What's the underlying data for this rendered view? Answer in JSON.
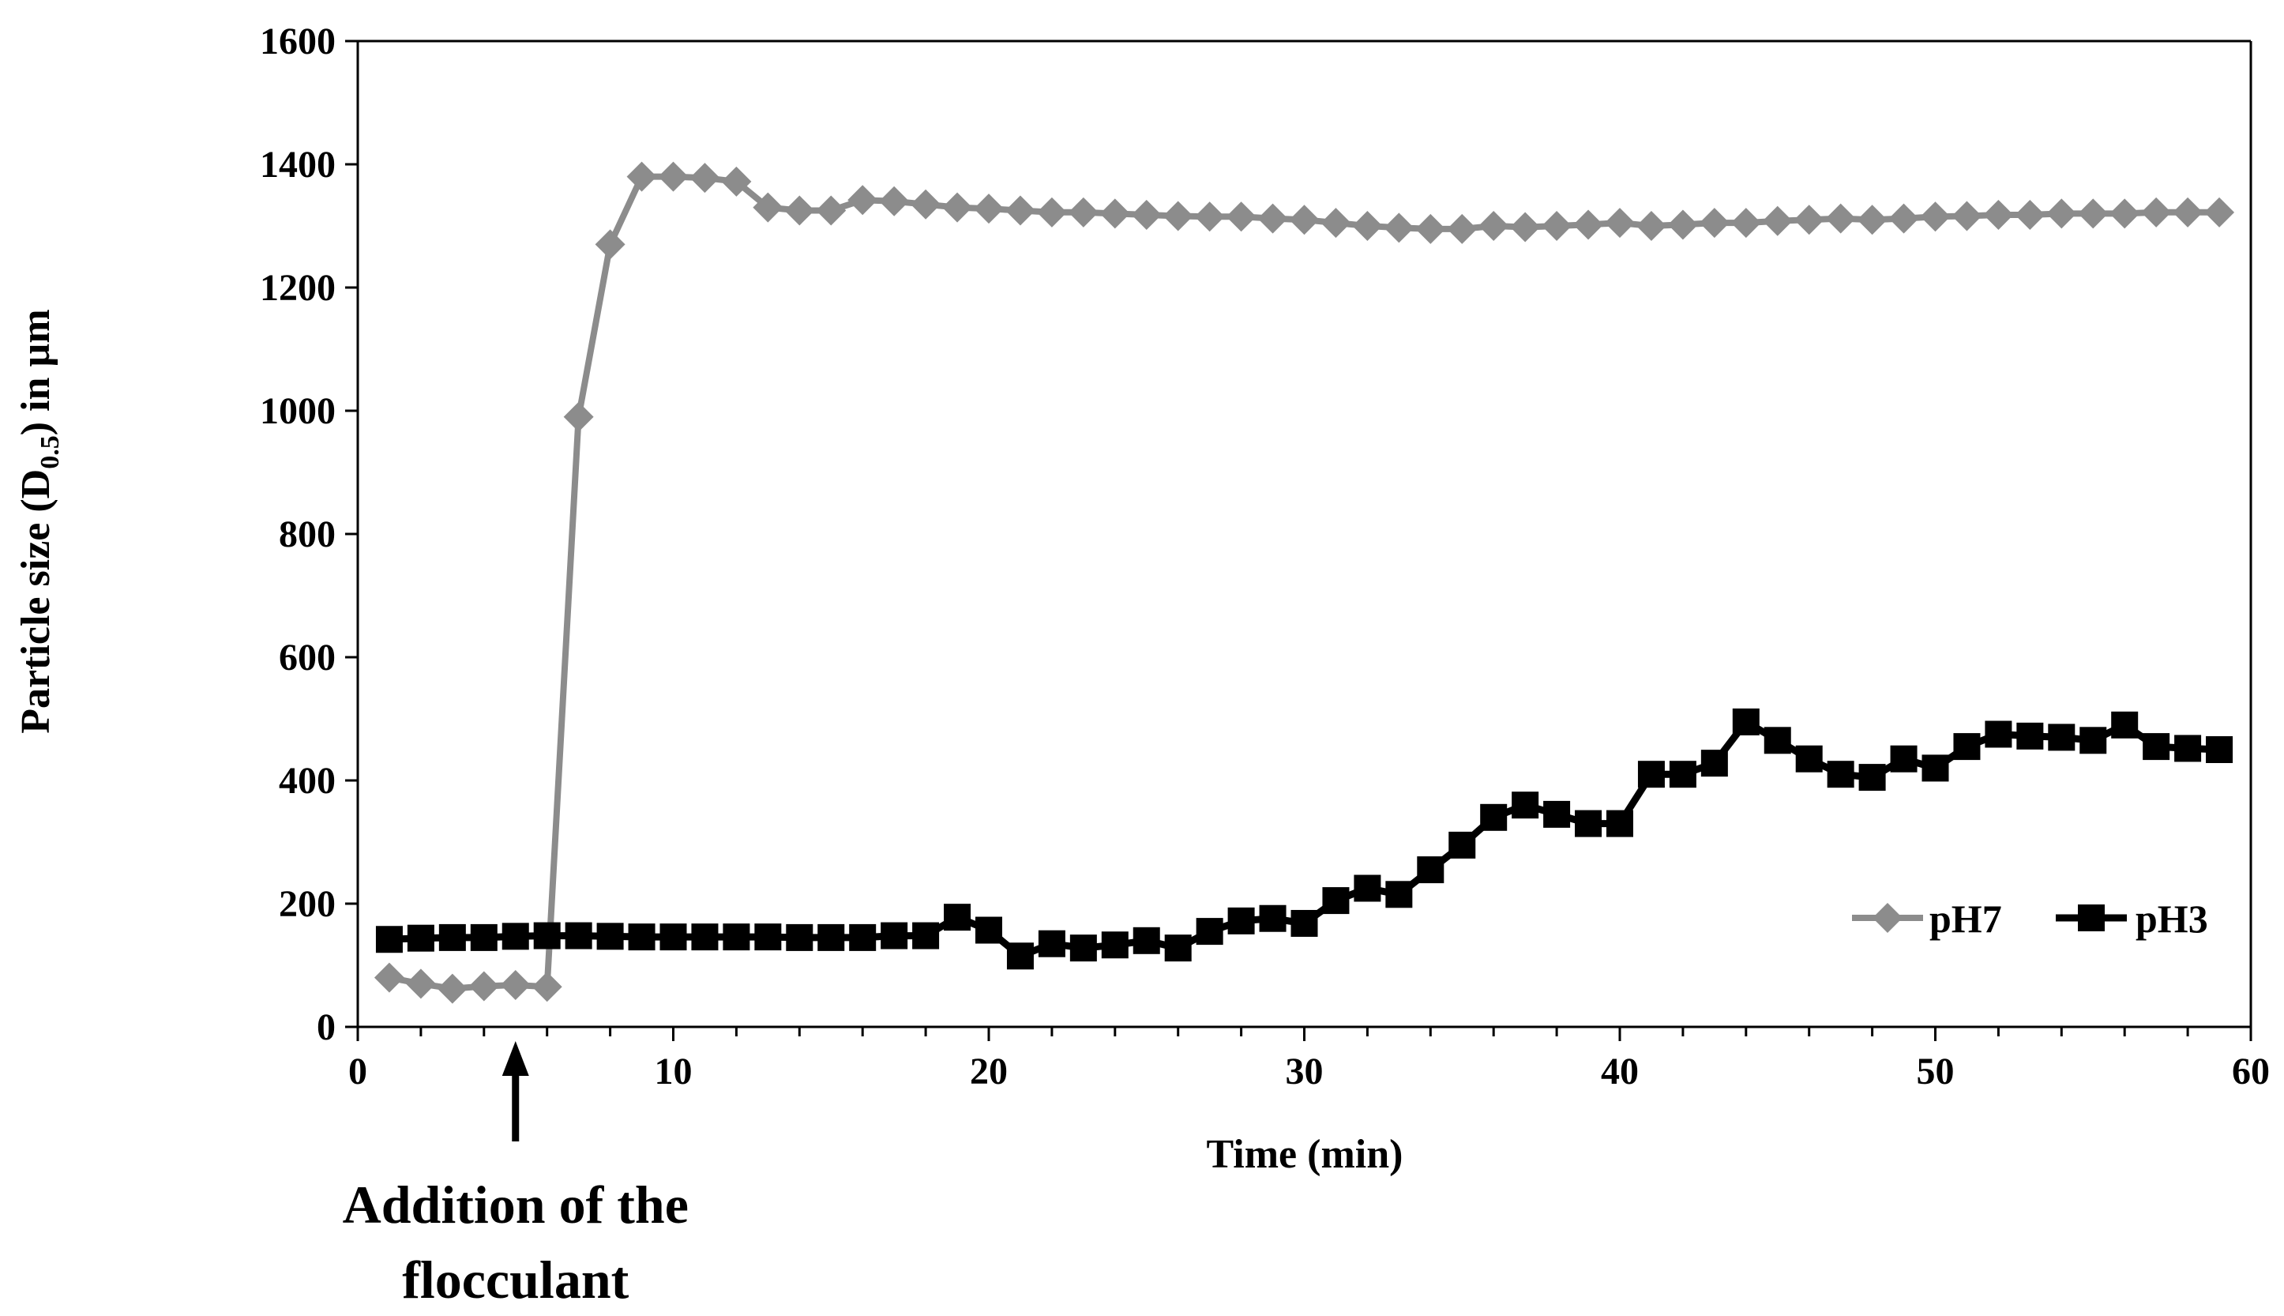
{
  "chart_data": {
    "type": "line",
    "xlabel": "Time (min)",
    "ylabel": "Particle size (D0.5) in µm",
    "ylabel_parts": {
      "main": "Particle size (D",
      "sub": "0.5",
      "tail": ") in µm"
    },
    "xlim": [
      0,
      60
    ],
    "ylim": [
      0,
      1600
    ],
    "x_ticks": [
      0,
      10,
      20,
      30,
      40,
      50,
      60
    ],
    "y_ticks": [
      0,
      200,
      400,
      600,
      800,
      1000,
      1200,
      1400,
      1600
    ],
    "grid": false,
    "legend_position": "bottom-right",
    "annotation": {
      "lines": [
        "Addition of the",
        "flocculant"
      ],
      "x": 5
    },
    "series": [
      {
        "name": "pH7",
        "color": "#8c8c8c",
        "marker": "diamond",
        "x": [
          1,
          2,
          3,
          4,
          5,
          6,
          7,
          8,
          9,
          10,
          11,
          12,
          13,
          14,
          15,
          16,
          17,
          18,
          19,
          20,
          21,
          22,
          23,
          24,
          25,
          26,
          27,
          28,
          29,
          30,
          31,
          32,
          33,
          34,
          35,
          36,
          37,
          38,
          39,
          40,
          41,
          42,
          43,
          44,
          45,
          46,
          47,
          48,
          49,
          50,
          51,
          52,
          53,
          54,
          55,
          56,
          57,
          58,
          59
        ],
        "values": [
          80,
          70,
          62,
          66,
          68,
          65,
          990,
          1270,
          1380,
          1380,
          1378,
          1372,
          1330,
          1325,
          1325,
          1342,
          1340,
          1335,
          1330,
          1328,
          1325,
          1322,
          1322,
          1320,
          1318,
          1316,
          1315,
          1315,
          1312,
          1310,
          1305,
          1300,
          1297,
          1295,
          1295,
          1300,
          1298,
          1300,
          1302,
          1305,
          1300,
          1302,
          1305,
          1305,
          1308,
          1310,
          1312,
          1310,
          1312,
          1315,
          1316,
          1318,
          1318,
          1320,
          1320,
          1320,
          1322,
          1322,
          1322
        ]
      },
      {
        "name": "pH3",
        "color": "#000000",
        "marker": "square",
        "x": [
          1,
          2,
          3,
          4,
          5,
          6,
          7,
          8,
          9,
          10,
          11,
          12,
          13,
          14,
          15,
          16,
          17,
          18,
          19,
          20,
          21,
          22,
          23,
          24,
          25,
          26,
          27,
          28,
          29,
          30,
          31,
          32,
          33,
          34,
          35,
          36,
          37,
          38,
          39,
          40,
          41,
          42,
          43,
          44,
          45,
          46,
          47,
          48,
          49,
          50,
          51,
          52,
          53,
          54,
          55,
          56,
          57,
          58,
          59
        ],
        "values": [
          142,
          144,
          145,
          145,
          147,
          148,
          148,
          147,
          146,
          146,
          146,
          146,
          146,
          145,
          145,
          145,
          148,
          148,
          178,
          157,
          115,
          135,
          128,
          133,
          140,
          128,
          155,
          172,
          176,
          168,
          205,
          225,
          215,
          255,
          295,
          340,
          360,
          345,
          330,
          330,
          410,
          410,
          428,
          495,
          465,
          435,
          410,
          405,
          435,
          420,
          455,
          475,
          472,
          470,
          465,
          490,
          455,
          452,
          450
        ]
      }
    ]
  }
}
